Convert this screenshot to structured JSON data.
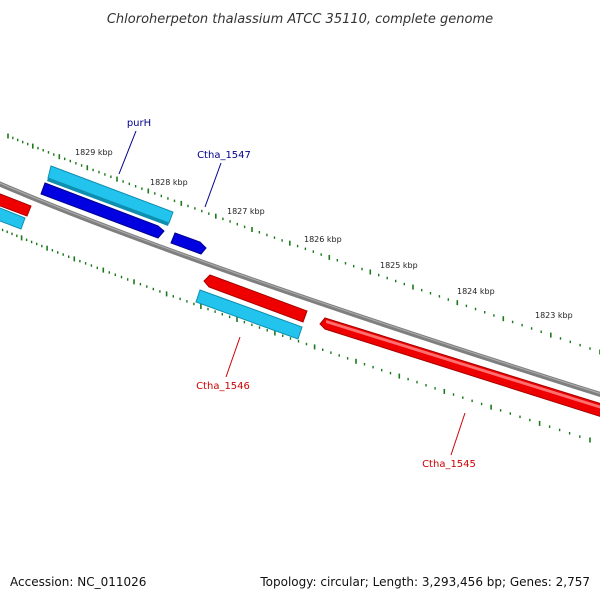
{
  "title": "Chloroherpeton thalassium ATCC 35110, complete genome",
  "footer": {
    "accession": "Accession: NC_011026",
    "summary": "Topology: circular; Length: 3,293,456 bp; Genes: 2,757"
  },
  "colors": {
    "backbone": "#7f7f7f",
    "tick": "#1a7a1a",
    "forward_cds": "#0000e0",
    "forward_gene": "#22c4ee",
    "reverse_cds": "#ee0000",
    "reverse_gene": "#22c4ee",
    "forward_label": "#00008b",
    "reverse_label": "#cc0000"
  },
  "scale": {
    "labels": [
      "1829 kbp",
      "1828 kbp",
      "1827 kbp",
      "1826 kbp",
      "1825 kbp",
      "1824 kbp",
      "1823 kbp"
    ]
  },
  "genes": [
    {
      "id": "purH",
      "label": "purH",
      "strand": "forward"
    },
    {
      "id": "ctha1547",
      "label": "Ctha_1547",
      "strand": "forward"
    },
    {
      "id": "ctha1546",
      "label": "Ctha_1546",
      "strand": "reverse"
    },
    {
      "id": "ctha1545",
      "label": "Ctha_1545",
      "strand": "reverse"
    }
  ]
}
